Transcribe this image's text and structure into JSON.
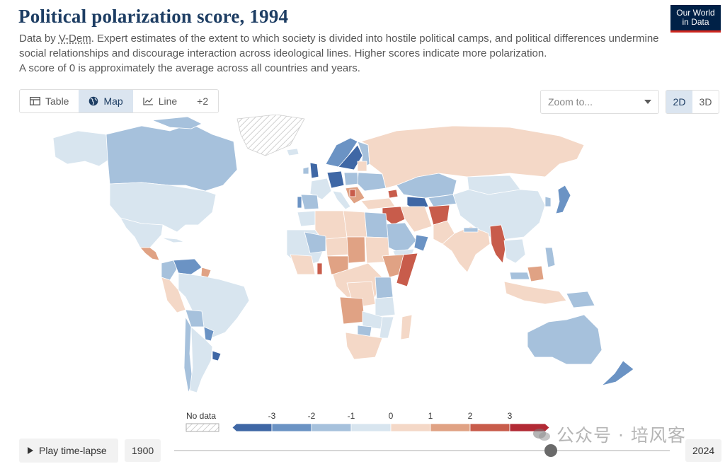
{
  "header": {
    "title": "Political polarization score, 1994",
    "subtitle_prefix": "Data by ",
    "source": "V-Dem",
    "subtitle_rest": ". Expert estimates of the extent to which society is divided into hostile political camps, and political differences undermine social relationships and discourage interaction across ideological lines. Higher scores indicate more polarization.",
    "subtitle_line3": "A score of 0 is approximately the average across all countries and years."
  },
  "logo": {
    "line1": "Our World",
    "line2": "in Data"
  },
  "tabs": [
    {
      "label": "Table",
      "icon": "table-icon",
      "active": false
    },
    {
      "label": "Map",
      "icon": "globe-icon",
      "active": true
    },
    {
      "label": "Line",
      "icon": "line-chart-icon",
      "active": false
    },
    {
      "label": "+2",
      "icon": "",
      "active": false
    }
  ],
  "zoom": {
    "placeholder": "Zoom to...",
    "icon": "chevron-down-icon"
  },
  "projection": {
    "options": [
      "2D",
      "3D"
    ],
    "selected": "2D"
  },
  "legend": {
    "no_data_label": "No data",
    "ticks": [
      "-3",
      "-2",
      "-1",
      "0",
      "1",
      "2",
      "3"
    ],
    "bins": [
      {
        "color": "#3f67a5"
      },
      {
        "color": "#6b93c4"
      },
      {
        "color": "#a6c1dc"
      },
      {
        "color": "#d8e5ef"
      },
      {
        "color": "#f4d8c7"
      },
      {
        "color": "#e0a284"
      },
      {
        "color": "#c85c4b"
      },
      {
        "color": "#b22a35"
      }
    ]
  },
  "timeline": {
    "play_label": "Play time-lapse",
    "start_year": "1900",
    "end_year": "2024",
    "position": 0.76
  },
  "watermark": "公众号 · 培风客"
}
